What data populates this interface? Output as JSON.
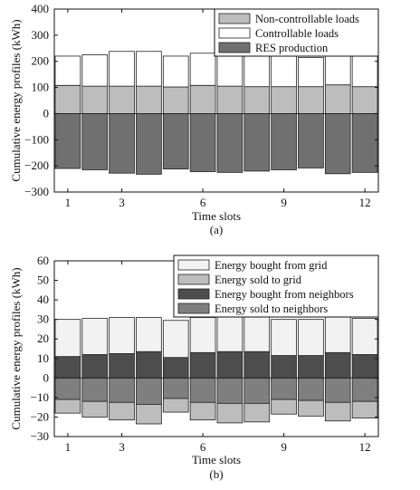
{
  "chart_data": [
    {
      "type": "bar",
      "stacked": true,
      "caption": "(a)",
      "xlabel": "Time slots",
      "ylabel": "Cumulative energy profiles (kWh)",
      "ylim": [
        -300,
        400
      ],
      "yticks": [
        -300,
        -200,
        -100,
        0,
        100,
        200,
        300,
        400
      ],
      "x": [
        1,
        2,
        3,
        4,
        5,
        6,
        7,
        8,
        9,
        10,
        11,
        12
      ],
      "xticks": [
        1,
        3,
        6,
        9,
        12
      ],
      "legend_position": "top-right",
      "series": [
        {
          "name": "Non-controllable loads",
          "color": "#bdbdbd",
          "direction": "positive",
          "values": [
            108,
            105,
            105,
            105,
            102,
            108,
            105,
            103,
            103,
            103,
            110,
            103
          ]
        },
        {
          "name": "Controllable loads",
          "color": "#ffffff",
          "direction": "positive",
          "values": [
            112,
            120,
            133,
            133,
            118,
            123,
            127,
            125,
            118,
            112,
            130,
            132
          ]
        },
        {
          "name": "RES production",
          "color": "#707070",
          "direction": "negative",
          "values": [
            -210,
            -215,
            -228,
            -232,
            -212,
            -222,
            -225,
            -220,
            -215,
            -208,
            -230,
            -225
          ]
        }
      ]
    },
    {
      "type": "bar",
      "stacked": true,
      "caption": "(b)",
      "xlabel": "Time slots",
      "ylabel": "Cumulative energy profiles (kWh)",
      "ylim": [
        -30,
        60
      ],
      "yticks": [
        -30,
        -20,
        -10,
        0,
        10,
        20,
        30,
        40,
        50,
        60
      ],
      "x": [
        1,
        2,
        3,
        4,
        5,
        6,
        7,
        8,
        9,
        10,
        11,
        12
      ],
      "xticks": [
        1,
        3,
        6,
        9,
        12
      ],
      "legend_position": "top-right",
      "series": [
        {
          "name": "Energy bought from grid",
          "color": "#f2f2f2",
          "direction": "positive_top",
          "values": [
            19,
            18.5,
            18.5,
            17.5,
            19,
            18,
            18.5,
            18.5,
            18.5,
            18.5,
            18.5,
            18.5
          ]
        },
        {
          "name": "Energy sold to grid",
          "color": "#bdbdbd",
          "direction": "negative_bottom",
          "values": [
            -7,
            -8,
            -9,
            -10,
            -7,
            -9,
            -10,
            -9.5,
            -7.5,
            -8,
            -9.5,
            -8.5
          ]
        },
        {
          "name": "Energy bought from neighbors",
          "color": "#4d4d4d",
          "direction": "positive_bottom",
          "values": [
            11,
            12,
            12.5,
            13.5,
            10.5,
            13,
            13.5,
            13.5,
            11.5,
            11.5,
            13,
            12
          ]
        },
        {
          "name": "Energy sold to neighbors",
          "color": "#7f7f7f",
          "direction": "negative_top",
          "values": [
            -11,
            -12,
            -12.5,
            -13.5,
            -10.5,
            -12.5,
            -13,
            -13,
            -11,
            -11.5,
            -12.5,
            -12
          ]
        }
      ]
    }
  ]
}
